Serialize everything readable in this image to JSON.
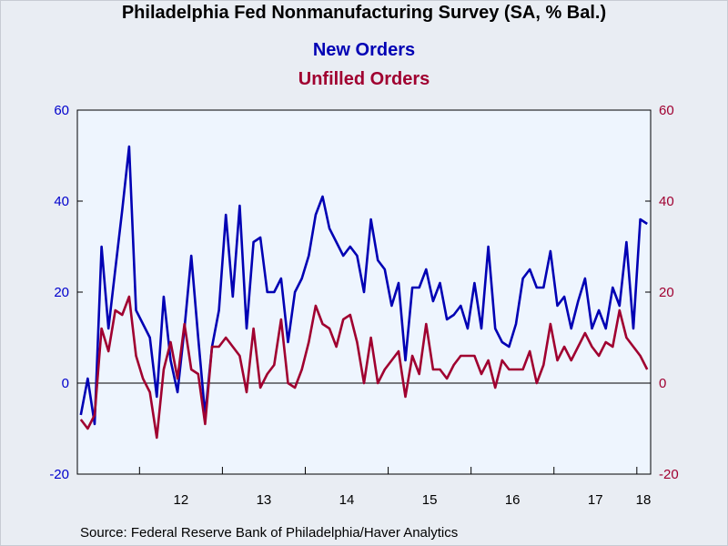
{
  "chart_data": {
    "type": "line",
    "title": "Philadelphia Fed Nonmanufacturing Survey (SA, % Bal.)",
    "source": "Source:  Federal Reserve Bank of Philadelphia/Haver Analytics",
    "start": "2011-04",
    "x_tick_labels": [
      {
        "label": "12",
        "year": 2012
      },
      {
        "label": "13",
        "year": 2013
      },
      {
        "label": "14",
        "year": 2014
      },
      {
        "label": "15",
        "year": 2015
      },
      {
        "label": "16",
        "year": 2016
      },
      {
        "label": "17",
        "year": 2017
      },
      {
        "label": "18",
        "year": 2018
      }
    ],
    "y_left": {
      "ylim": [
        -20,
        60
      ],
      "ticks": [
        -20,
        0,
        20,
        40,
        60
      ],
      "color": "#0000cc"
    },
    "y_right": {
      "ylim": [
        -20,
        60
      ],
      "ticks": [
        -20,
        0,
        20,
        40,
        60
      ],
      "color": "#a00030"
    },
    "zero_line": true,
    "series": [
      {
        "name": "New Orders",
        "color": "#0000b4",
        "values": [
          -7,
          1,
          -9,
          30,
          12,
          25,
          38,
          52,
          16,
          13,
          10,
          -3,
          19,
          5,
          -2,
          12,
          28,
          10,
          -7,
          8,
          16,
          37,
          19,
          39,
          12,
          31,
          32,
          20,
          20,
          23,
          9,
          20,
          23,
          28,
          37,
          41,
          34,
          31,
          28,
          30,
          28,
          20,
          36,
          27,
          25,
          17,
          22,
          5,
          21,
          21,
          25,
          18,
          22,
          14,
          15,
          17,
          12,
          22,
          12,
          30,
          12,
          9,
          8,
          13,
          23,
          25,
          21,
          21,
          29,
          17,
          19,
          12,
          18,
          23,
          12,
          16,
          12,
          21,
          17,
          31,
          12,
          36,
          35
        ]
      },
      {
        "name": "Unfilled Orders",
        "color": "#a00030",
        "values": [
          -8,
          -10,
          -7,
          12,
          7,
          16,
          15,
          19,
          6,
          1,
          -2,
          -12,
          3,
          9,
          1,
          13,
          3,
          2,
          -9,
          8,
          8,
          10,
          8,
          6,
          -2,
          12,
          -1,
          2,
          4,
          14,
          0,
          -1,
          3,
          9,
          17,
          13,
          12,
          8,
          14,
          15,
          9,
          0,
          10,
          0,
          3,
          5,
          7,
          -3,
          6,
          2,
          13,
          3,
          3,
          1,
          4,
          6,
          6,
          6,
          2,
          5,
          -1,
          5,
          3,
          3,
          3,
          7,
          0,
          4,
          13,
          5,
          8,
          5,
          8,
          11,
          8,
          6,
          9,
          8,
          16,
          10,
          8,
          6,
          3
        ]
      }
    ]
  }
}
